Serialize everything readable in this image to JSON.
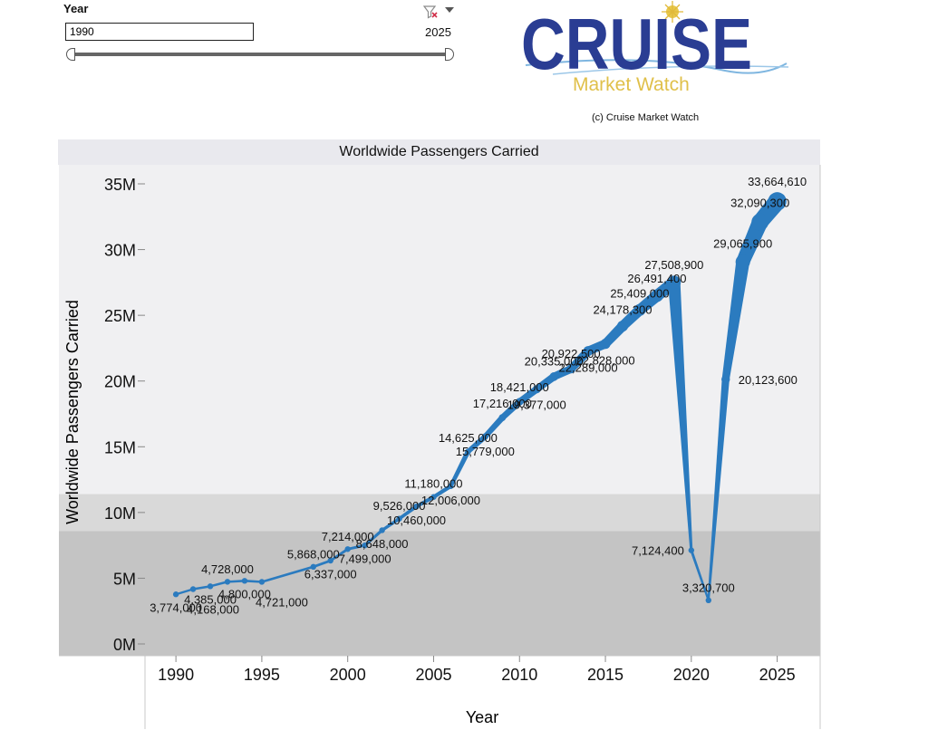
{
  "filter": {
    "label": "Year",
    "min_value": "1990",
    "max_value": "2025",
    "clear_icon": "filter-clear-icon",
    "menu_icon": "dropdown-arrow-icon"
  },
  "logo": {
    "word": "CRUISE",
    "subtitle": "Market Watch"
  },
  "copyright": "(c) Cruise Market Watch",
  "chart_data": {
    "type": "line",
    "title": "Worldwide Passengers Carried",
    "xlabel": "Year",
    "ylabel": "Worldwide Passengers Carried",
    "xlim": [
      1988.2,
      2027.5
    ],
    "ylim": [
      0,
      35000000
    ],
    "x_ticks": [
      1990,
      1995,
      2000,
      2005,
      2010,
      2015,
      2020,
      2025
    ],
    "y_ticks": [
      {
        "value": 0,
        "label": "0M"
      },
      {
        "value": 5000000,
        "label": "5M"
      },
      {
        "value": 10000000,
        "label": "10M"
      },
      {
        "value": 15000000,
        "label": "15M"
      },
      {
        "value": 20000000,
        "label": "20M"
      },
      {
        "value": 25000000,
        "label": "25M"
      },
      {
        "value": 30000000,
        "label": "30M"
      },
      {
        "value": 35000000,
        "label": "35M"
      }
    ],
    "reference_bands": [
      {
        "from": 0,
        "to": 8600000,
        "color": "#c4c4c4"
      },
      {
        "from": 8600000,
        "to": 11400000,
        "color": "#d9d9d9"
      },
      {
        "from": 11400000,
        "to": 35000000,
        "color": "#f0f0f2"
      }
    ],
    "series_color": "#2b7bbf",
    "series": [
      {
        "name": "Worldwide Passengers Carried",
        "points": [
          {
            "year": 1990,
            "value": 3774000
          },
          {
            "year": 1991,
            "value": 4168000
          },
          {
            "year": 1992,
            "value": 4385000
          },
          {
            "year": 1993,
            "value": 4728000
          },
          {
            "year": 1994,
            "value": 4800000
          },
          {
            "year": 1995,
            "value": 4721000
          },
          {
            "year": 1998,
            "value": 5868000
          },
          {
            "year": 1999,
            "value": 6337000
          },
          {
            "year": 2000,
            "value": 7214000
          },
          {
            "year": 2001,
            "value": 7499000
          },
          {
            "year": 2002,
            "value": 8648000
          },
          {
            "year": 2003,
            "value": 9526000
          },
          {
            "year": 2004,
            "value": 10460000
          },
          {
            "year": 2005,
            "value": 11180000
          },
          {
            "year": 2006,
            "value": 12006000
          },
          {
            "year": 2007,
            "value": 14625000
          },
          {
            "year": 2008,
            "value": 15779000
          },
          {
            "year": 2009,
            "value": 17216000
          },
          {
            "year": 2010,
            "value": 18421000
          },
          {
            "year": 2011,
            "value": 19377000
          },
          {
            "year": 2012,
            "value": 20335000
          },
          {
            "year": 2013,
            "value": 20922500
          },
          {
            "year": 2014,
            "value": 22289000
          },
          {
            "year": 2015,
            "value": 22828000
          },
          {
            "year": 2016,
            "value": 24178300
          },
          {
            "year": 2017,
            "value": 25409000
          },
          {
            "year": 2018,
            "value": 26491400
          },
          {
            "year": 2019,
            "value": 27508900
          },
          {
            "year": 2020,
            "value": 7124400
          },
          {
            "year": 2021,
            "value": 3320700
          },
          {
            "year": 2022,
            "value": 20123600
          },
          {
            "year": 2023,
            "value": 29065900
          },
          {
            "year": 2024,
            "value": 32090300
          },
          {
            "year": 2025,
            "value": 33664610
          }
        ]
      }
    ],
    "data_labels": [
      {
        "year": 1990,
        "text": "3,774,000",
        "anchor": "below"
      },
      {
        "year": 1991,
        "text": "4,168,000",
        "anchor": "below-right"
      },
      {
        "year": 1992,
        "text": "4,385,000",
        "anchor": "below"
      },
      {
        "year": 1993,
        "text": "4,728,000",
        "anchor": "above"
      },
      {
        "year": 1994,
        "text": "4,800,000",
        "anchor": "below"
      },
      {
        "year": 1995,
        "text": "4,721,000",
        "anchor": "below-right"
      },
      {
        "year": 1998,
        "text": "5,868,000",
        "anchor": "above"
      },
      {
        "year": 1999,
        "text": "6,337,000",
        "anchor": "below"
      },
      {
        "year": 2000,
        "text": "7,214,000",
        "anchor": "above"
      },
      {
        "year": 2001,
        "text": "7,499,000",
        "anchor": "below"
      },
      {
        "year": 2002,
        "text": "8,648,000",
        "anchor": "below"
      },
      {
        "year": 2003,
        "text": "9,526,000",
        "anchor": "above"
      },
      {
        "year": 2004,
        "text": "10,460,000",
        "anchor": "below"
      },
      {
        "year": 2005,
        "text": "11,180,000",
        "anchor": "above"
      },
      {
        "year": 2006,
        "text": "12,006,000",
        "anchor": "below"
      },
      {
        "year": 2007,
        "text": "14,625,000",
        "anchor": "above"
      },
      {
        "year": 2008,
        "text": "15,779,000",
        "anchor": "below"
      },
      {
        "year": 2009,
        "text": "17,216,000",
        "anchor": "above"
      },
      {
        "year": 2010,
        "text": "18,421,000",
        "anchor": "above"
      },
      {
        "year": 2011,
        "text": "19,377,000",
        "anchor": "below"
      },
      {
        "year": 2012,
        "text": "20,335,000",
        "anchor": "above"
      },
      {
        "year": 2013,
        "text": "20,922,500",
        "anchor": "above"
      },
      {
        "year": 2014,
        "text": "22,289,000",
        "anchor": "below"
      },
      {
        "year": 2015,
        "text": "22,828,000",
        "anchor": "below"
      },
      {
        "year": 2016,
        "text": "24,178,300",
        "anchor": "above"
      },
      {
        "year": 2017,
        "text": "25,409,000",
        "anchor": "above"
      },
      {
        "year": 2018,
        "text": "26,491,400",
        "anchor": "above"
      },
      {
        "year": 2019,
        "text": "27,508,900",
        "anchor": "above"
      },
      {
        "year": 2020,
        "text": "7,124,400",
        "anchor": "left"
      },
      {
        "year": 2021,
        "text": "3,320,700",
        "anchor": "above"
      },
      {
        "year": 2022,
        "text": "20,123,600",
        "anchor": "right"
      },
      {
        "year": 2023,
        "text": "29,065,900",
        "anchor": "above"
      },
      {
        "year": 2024,
        "text": "32,090,300",
        "anchor": "above"
      },
      {
        "year": 2025,
        "text": "33,664,610",
        "anchor": "above"
      }
    ]
  }
}
